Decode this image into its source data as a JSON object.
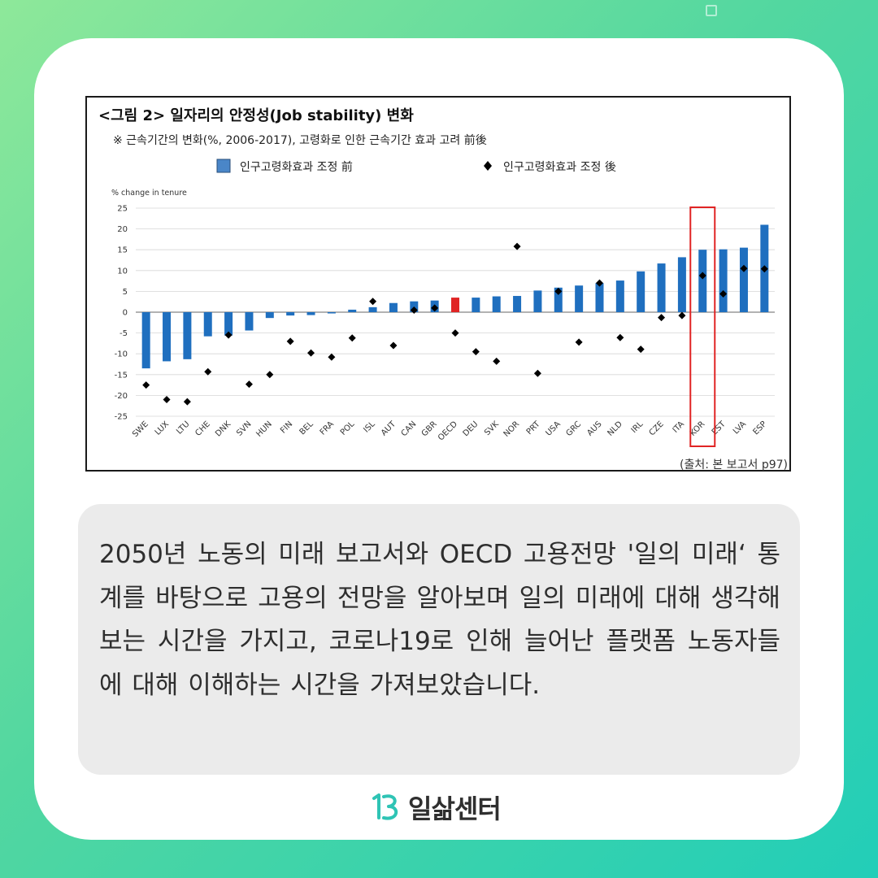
{
  "chart_data": {
    "type": "bar",
    "title": "<그림 2> 일자리의 안정성(Job stability) 변화",
    "subtitle": "※ 근속기간의 변화(%, 2006-2017), 고령화로 인한 근속기간 효과 고려 前後",
    "ylabel": "% change in tenure",
    "ylim": [
      -25,
      25
    ],
    "yticks": [
      25,
      20,
      15,
      10,
      5,
      0,
      -5,
      -10,
      -15,
      -20,
      -25
    ],
    "categories": [
      "SWE",
      "LUX",
      "LTU",
      "CHE",
      "DNK",
      "SVN",
      "HUN",
      "FIN",
      "BEL",
      "FRA",
      "POL",
      "ISL",
      "AUT",
      "CAN",
      "GBR",
      "OECD",
      "DEU",
      "SVK",
      "NOR",
      "PRT",
      "USA",
      "GRC",
      "AUS",
      "NLD",
      "IRL",
      "CZE",
      "ITA",
      "KOR",
      "EST",
      "LVA",
      "ESP"
    ],
    "series": [
      {
        "name": "인구고령화효과 조정 前",
        "type": "bar",
        "color": "#1f6fbf",
        "values": [
          -13.5,
          -11.8,
          -11.3,
          -5.8,
          -5.6,
          -4.4,
          -1.4,
          -0.8,
          -0.7,
          -0.3,
          0.6,
          1.2,
          2.2,
          2.6,
          2.8,
          3.5,
          3.5,
          3.8,
          3.9,
          5.2,
          5.9,
          6.4,
          7.0,
          7.6,
          9.8,
          11.7,
          13.2,
          15.0,
          15.1,
          15.5,
          21.0
        ]
      },
      {
        "name": "인구고령화효과 조정 後",
        "type": "scatter",
        "marker": "diamond",
        "color": "#000000",
        "values": [
          -17.5,
          -21.0,
          -21.5,
          -14.3,
          -5.5,
          -17.3,
          -15.0,
          -7.0,
          -9.8,
          -10.8,
          -6.2,
          2.6,
          -8.0,
          0.5,
          1.0,
          -5.0,
          -9.5,
          -11.8,
          15.8,
          -14.7,
          5.0,
          -7.2,
          7.0,
          -6.1,
          -8.9,
          -1.3,
          -0.8,
          8.8,
          4.4,
          10.5,
          10.4
        ]
      }
    ],
    "highlight_color": "#e02424",
    "highlight_bar": "OECD",
    "highlight_box": "KOR",
    "grid": true,
    "legend_placement": "top",
    "source": "(출처: 본 보고서 p97)"
  },
  "body_text": "2050년 노동의 미래 보고서와 OECD 고용전망 '일의 미래‘ 통계를 바탕으로 고용의 전망을 알아보며 일의 미래에 대해 생각해 보는 시간을 가지고, 코로나19로 인해 늘어난 플랫폼 노동자들에 대해 이해하는 시간을 가져보았습니다.",
  "logo": {
    "text": "일삶센터",
    "icon": "ilsam-logo-icon",
    "color": "#2fc4b5"
  }
}
